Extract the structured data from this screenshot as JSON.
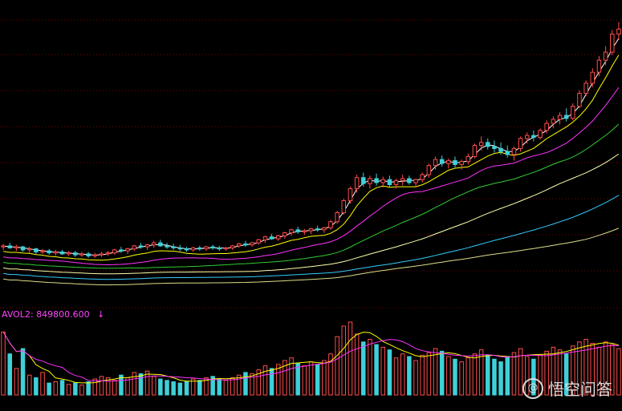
{
  "chart_data": [
    {
      "type": "candlestick",
      "panel": "price",
      "moving_averages": [
        "white",
        "yellow",
        "magenta",
        "green",
        "lightyellow",
        "cyan",
        "khaki"
      ],
      "grid": true,
      "ohlc": [
        [
          10.2,
          10.5,
          9.9,
          10.3
        ],
        [
          10.3,
          10.6,
          10.0,
          10.1
        ],
        [
          10.1,
          10.4,
          9.8,
          10.2
        ],
        [
          10.2,
          10.3,
          9.7,
          9.9
        ],
        [
          9.9,
          10.2,
          9.6,
          10.0
        ],
        [
          10.0,
          10.1,
          9.5,
          9.7
        ],
        [
          9.7,
          10.0,
          9.5,
          9.8
        ],
        [
          9.8,
          10.0,
          9.4,
          9.6
        ],
        [
          9.6,
          9.9,
          9.3,
          9.7
        ],
        [
          9.7,
          9.9,
          9.4,
          9.5
        ],
        [
          9.5,
          9.8,
          9.3,
          9.6
        ],
        [
          9.6,
          9.8,
          9.2,
          9.4
        ],
        [
          9.4,
          9.7,
          9.2,
          9.5
        ],
        [
          9.5,
          9.7,
          9.1,
          9.3
        ],
        [
          9.3,
          9.6,
          9.1,
          9.4
        ],
        [
          9.4,
          9.7,
          9.2,
          9.5
        ],
        [
          9.5,
          9.8,
          9.3,
          9.6
        ],
        [
          9.6,
          10.0,
          9.4,
          9.9
        ],
        [
          9.9,
          10.2,
          9.6,
          9.8
        ],
        [
          9.8,
          10.1,
          9.5,
          10.0
        ],
        [
          10.0,
          10.4,
          9.8,
          10.3
        ],
        [
          10.3,
          10.6,
          10.0,
          10.2
        ],
        [
          10.2,
          10.5,
          9.9,
          10.4
        ],
        [
          10.4,
          10.8,
          10.1,
          10.6
        ],
        [
          10.6,
          10.9,
          10.2,
          10.3
        ],
        [
          10.3,
          10.6,
          10.0,
          10.2
        ],
        [
          10.2,
          10.5,
          9.9,
          10.1
        ],
        [
          10.1,
          10.4,
          9.8,
          10.0
        ],
        [
          10.0,
          10.2,
          9.7,
          9.9
        ],
        [
          9.9,
          10.2,
          9.7,
          10.1
        ],
        [
          10.1,
          10.3,
          9.8,
          10.0
        ],
        [
          10.0,
          10.3,
          9.8,
          10.2
        ],
        [
          10.2,
          10.4,
          9.9,
          10.1
        ],
        [
          10.1,
          10.3,
          9.8,
          10.0
        ],
        [
          10.0,
          10.2,
          9.8,
          10.1
        ],
        [
          10.1,
          10.4,
          9.9,
          10.3
        ],
        [
          10.3,
          10.6,
          10.1,
          10.5
        ],
        [
          10.5,
          10.8,
          10.2,
          10.4
        ],
        [
          10.4,
          10.7,
          10.2,
          10.6
        ],
        [
          10.6,
          11.0,
          10.4,
          10.9
        ],
        [
          10.9,
          11.3,
          10.6,
          11.2
        ],
        [
          11.2,
          11.5,
          10.9,
          11.0
        ],
        [
          11.0,
          11.4,
          10.8,
          11.3
        ],
        [
          11.3,
          11.7,
          11.0,
          11.6
        ],
        [
          11.6,
          12.0,
          11.3,
          11.9
        ],
        [
          11.9,
          12.2,
          11.5,
          11.7
        ],
        [
          11.7,
          12.0,
          11.4,
          11.8
        ],
        [
          11.8,
          12.1,
          11.5,
          12.0
        ],
        [
          12.0,
          12.3,
          11.7,
          11.9
        ],
        [
          11.9,
          12.2,
          11.6,
          12.1
        ],
        [
          12.1,
          12.9,
          11.9,
          12.7
        ],
        [
          12.7,
          13.8,
          12.5,
          13.6
        ],
        [
          13.6,
          15.0,
          13.4,
          14.8
        ],
        [
          14.8,
          16.2,
          14.5,
          16.0
        ],
        [
          16.0,
          17.4,
          15.6,
          17.1
        ],
        [
          17.1,
          17.6,
          16.2,
          16.5
        ],
        [
          16.5,
          17.3,
          16.0,
          17.0
        ],
        [
          17.0,
          17.5,
          16.3,
          16.6
        ],
        [
          16.6,
          17.2,
          16.1,
          16.9
        ],
        [
          16.9,
          17.3,
          16.2,
          16.4
        ],
        [
          16.4,
          17.0,
          16.0,
          16.8
        ],
        [
          16.8,
          17.4,
          16.3,
          17.0
        ],
        [
          17.0,
          17.3,
          16.4,
          16.6
        ],
        [
          16.6,
          17.0,
          16.1,
          16.9
        ],
        [
          16.9,
          17.6,
          16.6,
          17.4
        ],
        [
          17.4,
          18.5,
          17.1,
          18.3
        ],
        [
          18.3,
          19.2,
          17.9,
          18.9
        ],
        [
          18.9,
          19.3,
          18.2,
          18.5
        ],
        [
          18.5,
          19.0,
          18.0,
          18.8
        ],
        [
          18.8,
          19.2,
          18.1,
          18.4
        ],
        [
          18.4,
          18.9,
          17.9,
          18.7
        ],
        [
          18.7,
          19.5,
          18.4,
          19.2
        ],
        [
          19.2,
          20.5,
          19.0,
          20.3
        ],
        [
          20.3,
          21.2,
          19.8,
          20.6
        ],
        [
          20.6,
          21.0,
          19.9,
          20.2
        ],
        [
          20.2,
          20.8,
          19.6,
          20.0
        ],
        [
          20.0,
          20.6,
          19.4,
          19.7
        ],
        [
          19.7,
          20.3,
          19.1,
          19.4
        ],
        [
          19.4,
          20.2,
          18.8,
          20.0
        ],
        [
          20.0,
          21.2,
          19.7,
          21.0
        ],
        [
          21.0,
          21.6,
          20.5,
          21.3
        ],
        [
          21.3,
          21.8,
          20.7,
          21.1
        ],
        [
          21.1,
          22.0,
          20.9,
          21.8
        ],
        [
          21.8,
          22.8,
          21.5,
          22.5
        ],
        [
          22.5,
          23.2,
          22.0,
          22.9
        ],
        [
          22.9,
          23.6,
          22.4,
          23.3
        ],
        [
          23.3,
          24.0,
          22.7,
          23.0
        ],
        [
          23.0,
          24.5,
          22.8,
          24.2
        ],
        [
          24.2,
          25.8,
          24.0,
          25.5
        ],
        [
          25.5,
          26.8,
          25.2,
          26.5
        ],
        [
          26.5,
          28.0,
          26.1,
          27.6
        ],
        [
          27.6,
          29.2,
          27.2,
          28.8
        ],
        [
          28.8,
          30.2,
          28.3,
          29.6
        ],
        [
          29.6,
          31.8,
          29.3,
          31.4
        ],
        [
          31.4,
          32.6,
          30.8,
          31.9
        ]
      ],
      "volume": [
        95,
        62,
        40,
        70,
        30,
        26,
        34,
        18,
        20,
        22,
        16,
        18,
        15,
        20,
        24,
        28,
        26,
        22,
        30,
        26,
        34,
        32,
        36,
        28,
        24,
        22,
        20,
        18,
        20,
        24,
        22,
        26,
        28,
        24,
        22,
        26,
        30,
        34,
        32,
        38,
        44,
        40,
        46,
        52,
        56,
        48,
        44,
        50,
        46,
        52,
        62,
        88,
        104,
        110,
        92,
        80,
        84,
        76,
        72,
        68,
        56,
        62,
        58,
        52,
        60,
        64,
        70,
        66,
        58,
        54,
        50,
        56,
        62,
        68,
        60,
        54,
        50,
        58,
        64,
        70,
        58,
        54,
        60,
        66,
        72,
        68,
        62,
        74,
        80,
        84,
        78,
        72,
        80,
        76,
        70
      ],
      "volume_ma": [
        "yellow",
        "magenta"
      ]
    }
  ],
  "vol_indicator": {
    "text": "AVOL2: 849800.600",
    "arrow": "↓"
  },
  "colors": {
    "up": "#ff4d4d",
    "down": "#3fd0d8",
    "grid": "#7a0000",
    "ma": [
      "#ffffff",
      "#ffff00",
      "#ff33ff",
      "#33cc33",
      "#ffffaa",
      "#33ccff",
      "#dddd88"
    ]
  },
  "watermark": {
    "icon": "headline-logo-icon",
    "text": "悟空问答"
  }
}
